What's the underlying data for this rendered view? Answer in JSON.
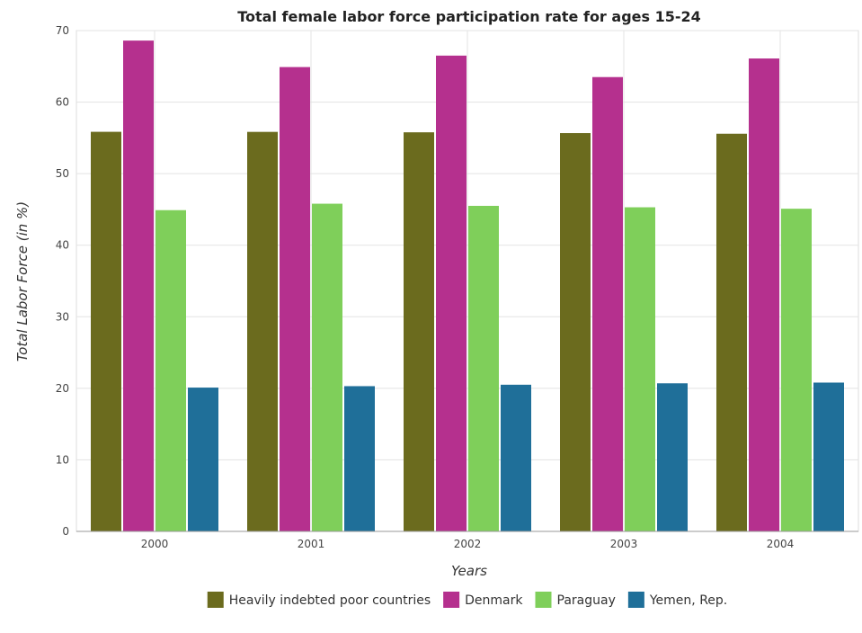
{
  "chart_data": {
    "type": "bar",
    "title": "Total female labor force participation rate for ages 15-24",
    "xlabel": "Years",
    "ylabel": "Total Labor Force (in %)",
    "categories": [
      "2000",
      "2001",
      "2002",
      "2003",
      "2004"
    ],
    "ylim": [
      0,
      70
    ],
    "yticks": [
      0,
      10,
      20,
      30,
      40,
      50,
      60,
      70
    ],
    "grid": true,
    "legend_position": "bottom",
    "series": [
      {
        "name": "Heavily indebted poor countries",
        "color": "#6b6b1e",
        "values": [
          55.85,
          55.84,
          55.78,
          55.67,
          55.58
        ]
      },
      {
        "name": "Denmark",
        "color": "#b5308e",
        "values": [
          68.6,
          64.9,
          66.5,
          63.5,
          66.1
        ]
      },
      {
        "name": "Paraguay",
        "color": "#7fcf5a",
        "values": [
          44.9,
          45.8,
          45.5,
          45.3,
          45.1
        ]
      },
      {
        "name": "Yemen, Rep.",
        "color": "#1f6f99",
        "values": [
          20.1,
          20.3,
          20.5,
          20.7,
          20.8
        ]
      }
    ]
  }
}
